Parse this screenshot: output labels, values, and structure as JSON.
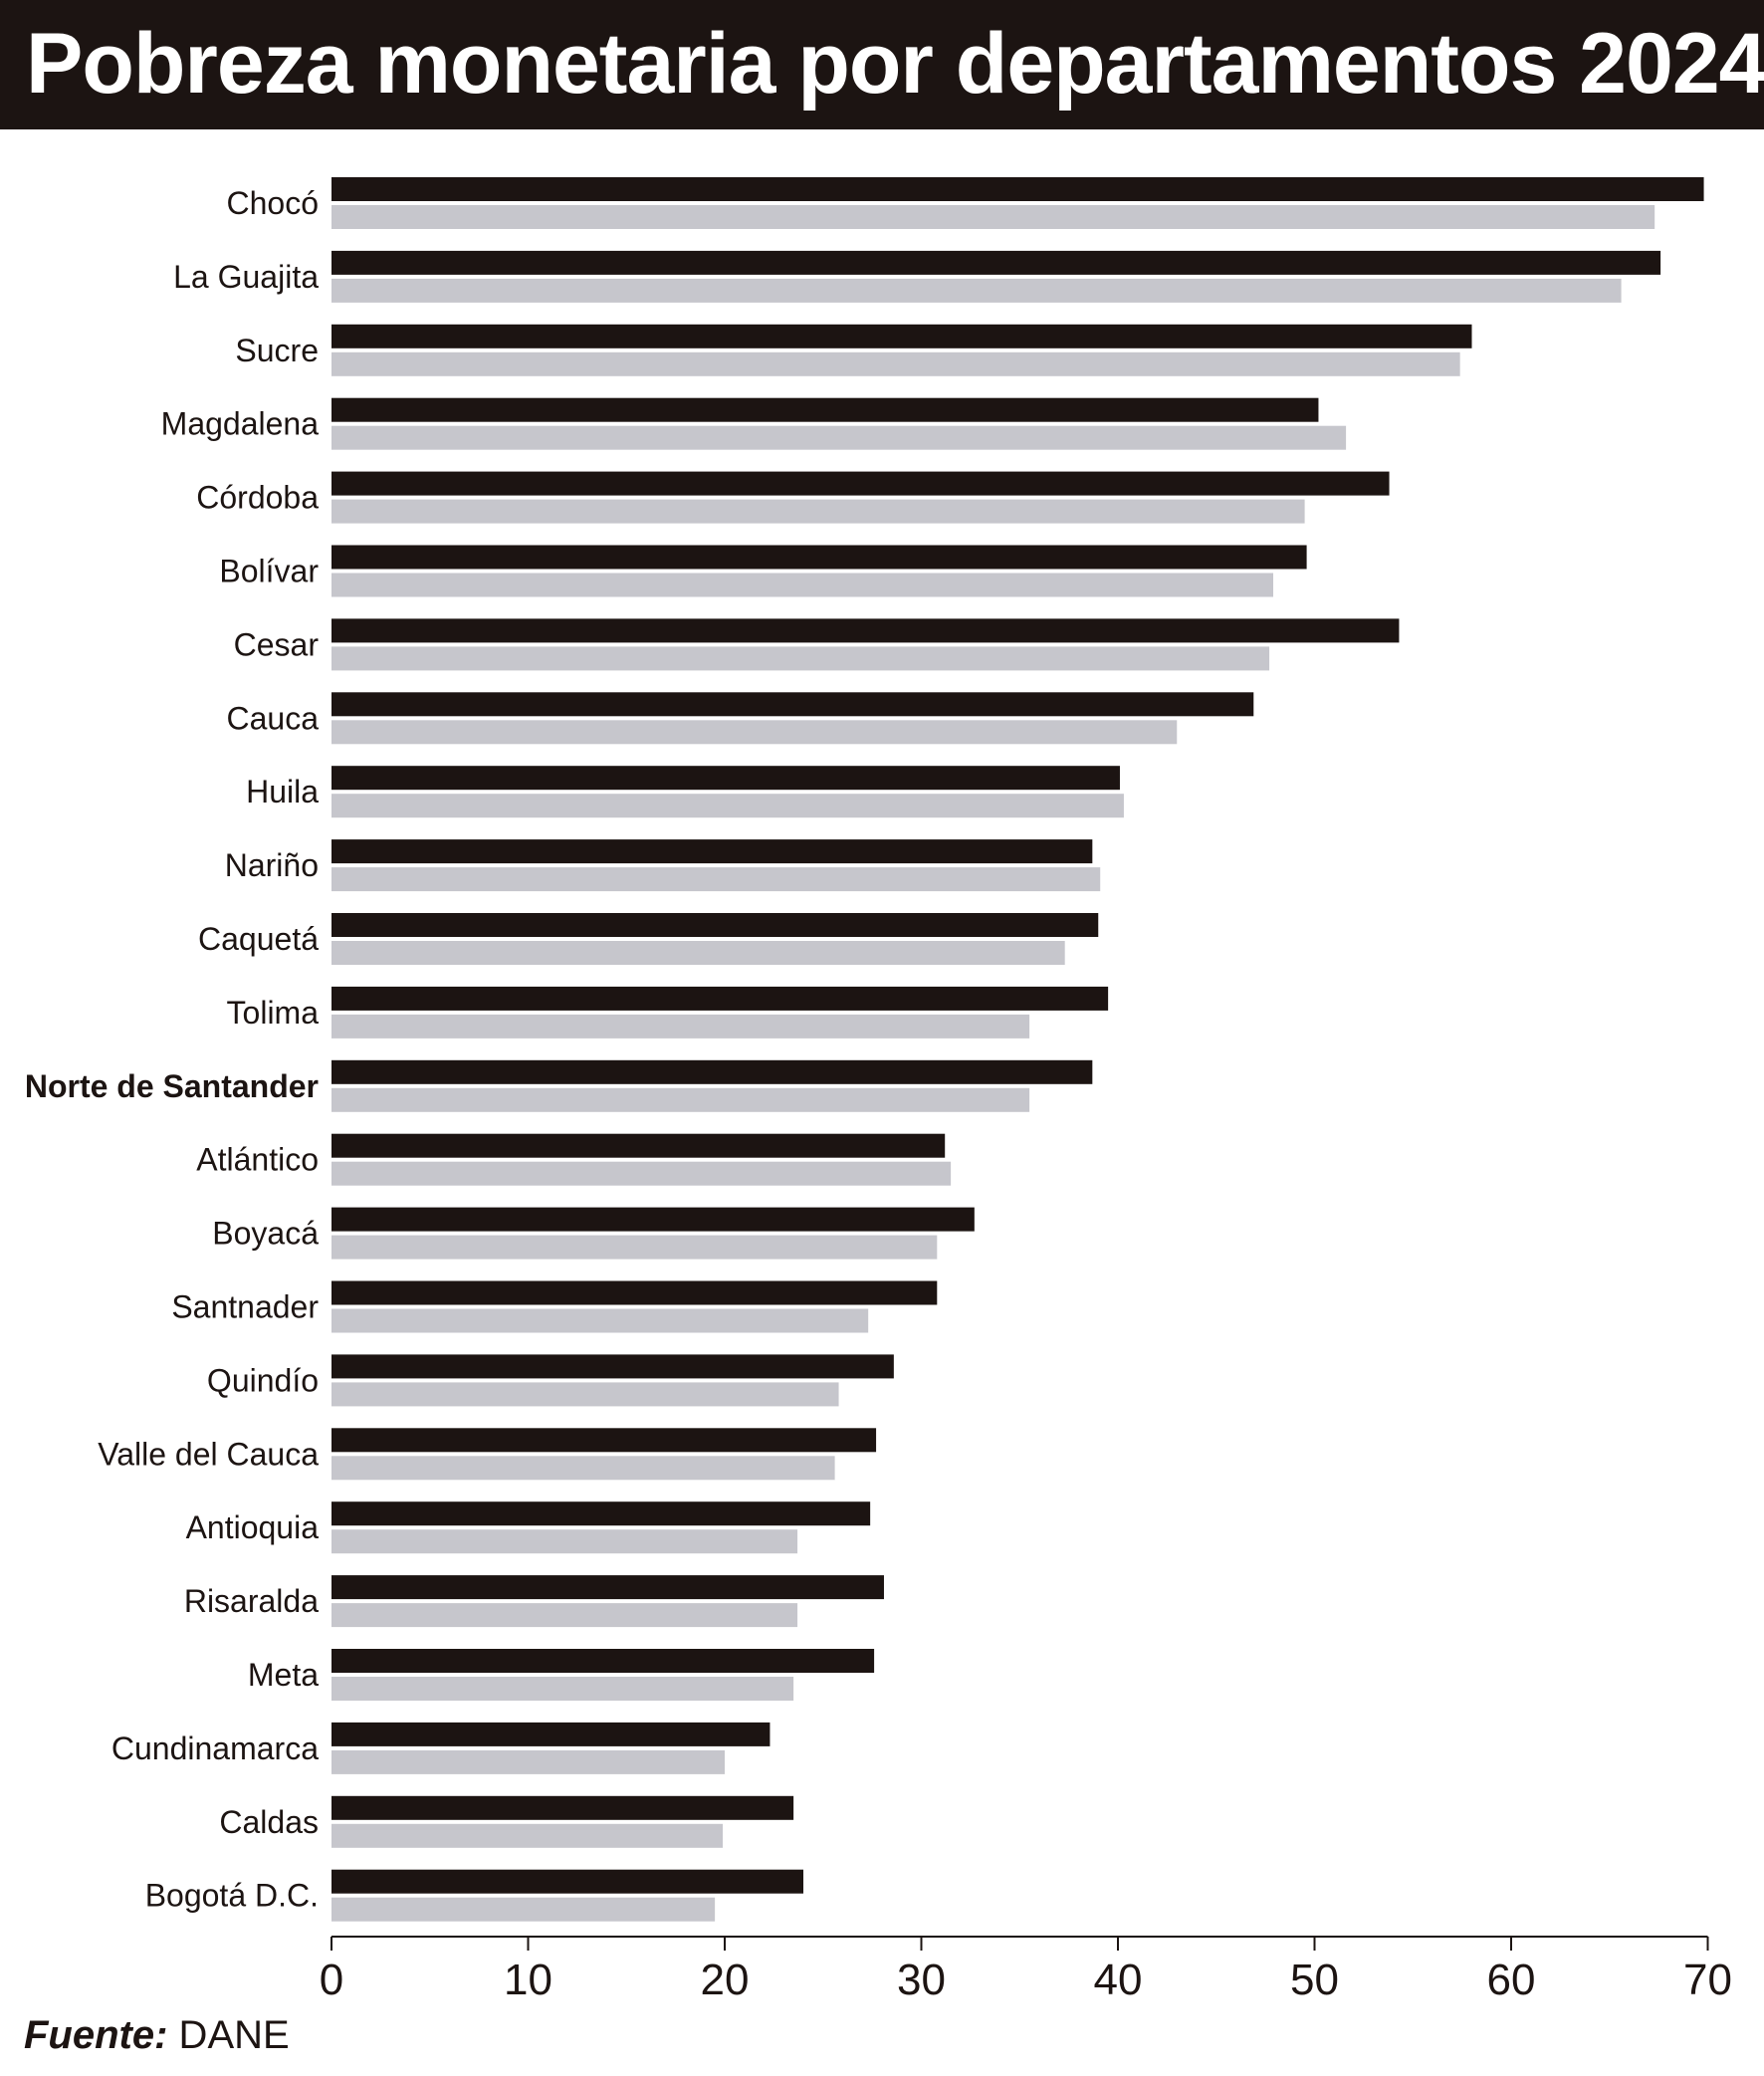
{
  "chart_data": {
    "type": "bar",
    "orientation": "horizontal",
    "title": "Pobreza monetaria por departamentos 2024",
    "categories": [
      "Chocó",
      "La Guajita",
      "Sucre",
      "Magdalena",
      "Córdoba",
      "Bolívar",
      "Cesar",
      "Cauca",
      "Huila",
      "Nariño",
      "Caquetá",
      "Tolima",
      "Norte de Santander",
      "Atlántico",
      "Boyacá",
      "Santnader",
      "Quindío",
      "Valle del Cauca",
      "Antioquia",
      "Risaralda",
      "Meta",
      "Cundinamarca",
      "Caldas",
      "Bogotá D.C."
    ],
    "series": [
      {
        "color": "#1c1412",
        "values": [
          69.8,
          67.6,
          58.0,
          50.2,
          53.8,
          49.6,
          54.3,
          46.9,
          40.1,
          38.7,
          39.0,
          39.5,
          38.7,
          31.2,
          32.7,
          30.8,
          28.6,
          27.7,
          27.4,
          28.1,
          27.6,
          22.3,
          23.5,
          24.0
        ]
      },
      {
        "color": "#c6c6cc",
        "values": [
          67.3,
          65.6,
          57.4,
          51.6,
          49.5,
          47.9,
          47.7,
          43.0,
          40.3,
          39.1,
          37.3,
          35.5,
          35.5,
          31.5,
          30.8,
          27.3,
          25.8,
          25.6,
          23.7,
          23.7,
          23.5,
          20.0,
          19.9,
          19.5
        ]
      }
    ],
    "xlim": [
      0,
      70
    ],
    "xticks": [
      0,
      10,
      20,
      30,
      40,
      50,
      60,
      70
    ],
    "xlabel": "",
    "ylabel": "",
    "grid": false,
    "legend": "none",
    "bold_category": "Norte de Santander"
  },
  "source": {
    "label": "Fuente:",
    "value": " DANE"
  }
}
